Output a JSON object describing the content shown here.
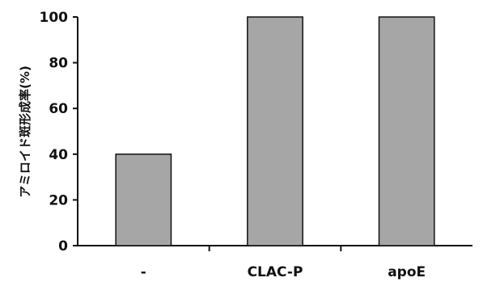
{
  "chart_data": {
    "type": "bar",
    "categories": [
      "-",
      "CLAC-P",
      "apoE"
    ],
    "values": [
      40,
      100,
      100
    ],
    "xlabel": "",
    "ylabel": "アミロイド斑形成率(%)",
    "ylim": [
      0,
      100
    ],
    "yticks": [
      0,
      20,
      40,
      60,
      80,
      100
    ],
    "grid": false,
    "legend": "none",
    "colors": {
      "bar_fill": "#a6a6a6",
      "bar_stroke": "#111111",
      "axis": "#111111"
    }
  }
}
